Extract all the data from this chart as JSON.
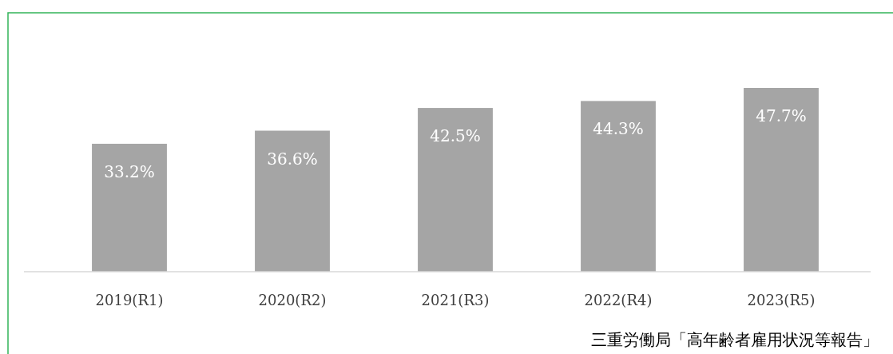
{
  "chart_data": {
    "type": "bar",
    "categories": [
      "2019(R1)",
      "2020(R2)",
      "2021(R3)",
      "2022(R4)",
      "2023(R5)"
    ],
    "values": [
      33.2,
      36.6,
      42.5,
      44.3,
      47.7
    ],
    "value_labels": [
      "33.2%",
      "36.6%",
      "42.5%",
      "44.3%",
      "47.7%"
    ],
    "color": "#a5a5a5",
    "annotations": [
      "三重労働局「高年齢者雇用状況等報告」"
    ]
  }
}
